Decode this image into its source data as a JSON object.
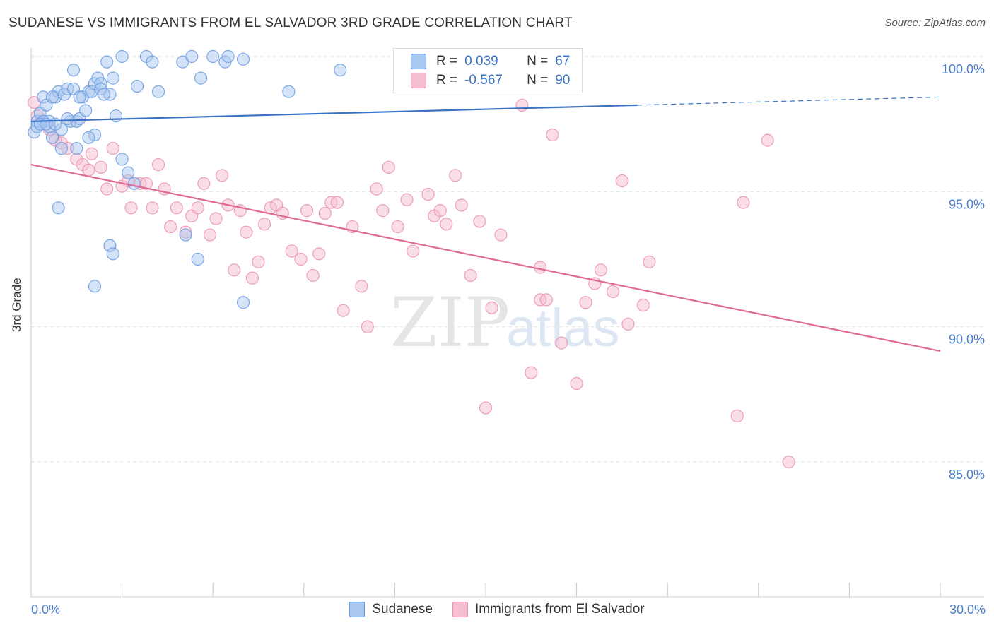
{
  "header": {
    "title": "SUDANESE VS IMMIGRANTS FROM EL SALVADOR 3RD GRADE CORRELATION CHART",
    "source": "Source: ZipAtlas.com"
  },
  "legend_top": {
    "rows": [
      {
        "r_label": "R =",
        "r_value": "0.039",
        "n_label": "N =",
        "n_value": "67"
      },
      {
        "r_label": "R =",
        "r_value": "-0.567",
        "n_label": "N =",
        "n_value": "90"
      }
    ]
  },
  "watermark": {
    "zip": "ZIP",
    "atlas": "atlas"
  },
  "chart_data": {
    "type": "scatter",
    "ylabel": "3rd Grade",
    "xlim": [
      0,
      30
    ],
    "ylim": [
      80.5,
      101.5
    ],
    "x_ticks": [
      {
        "value": 0,
        "label": "0.0%"
      },
      {
        "value": 30,
        "label": "30.0%"
      }
    ],
    "y_ticks": [
      {
        "value": 100,
        "label": "100.0%"
      },
      {
        "value": 95,
        "label": "95.0%"
      },
      {
        "value": 90,
        "label": "90.0%"
      },
      {
        "value": 85,
        "label": "85.0%"
      }
    ],
    "grid": "horizontal-dashed",
    "colors": {
      "sudanese_fill": "#a9c8f0",
      "sudanese_edge": "#6a9be0",
      "sudanese_line": "#3b73c4",
      "salvador_fill": "#f5bdd0",
      "salvador_edge": "#ea8fae",
      "salvador_line": "#e06a96",
      "tick_label": "#4a7ecb"
    },
    "series": [
      {
        "name": "Sudanese",
        "trend": {
          "x0": 0,
          "y0": 97.6,
          "x1": 20.0,
          "y1": 98.2,
          "dash_to_x": 30,
          "dash_to_y": 98.5
        },
        "points": [
          [
            0.1,
            97.2
          ],
          [
            0.2,
            97.6
          ],
          [
            0.3,
            97.9
          ],
          [
            0.4,
            98.5
          ],
          [
            0.5,
            98.2
          ],
          [
            0.6,
            97.6
          ],
          [
            0.7,
            97.0
          ],
          [
            0.8,
            98.5
          ],
          [
            0.9,
            98.7
          ],
          [
            1.0,
            97.3
          ],
          [
            1.1,
            98.6
          ],
          [
            1.2,
            98.8
          ],
          [
            1.3,
            97.6
          ],
          [
            1.4,
            98.8
          ],
          [
            1.5,
            97.6
          ],
          [
            1.6,
            97.7
          ],
          [
            1.7,
            98.5
          ],
          [
            1.8,
            98.0
          ],
          [
            1.9,
            98.7
          ],
          [
            2.0,
            98.7
          ],
          [
            2.1,
            99.0
          ],
          [
            2.2,
            99.2
          ],
          [
            2.3,
            99.0
          ],
          [
            2.5,
            99.8
          ],
          [
            2.6,
            98.6
          ],
          [
            2.7,
            99.2
          ],
          [
            3.0,
            100.0
          ],
          [
            3.5,
            98.9
          ],
          [
            3.8,
            100.0
          ],
          [
            4.0,
            99.8
          ],
          [
            4.2,
            98.7
          ],
          [
            5.0,
            99.8
          ],
          [
            5.3,
            100.0
          ],
          [
            5.6,
            99.2
          ],
          [
            6.0,
            100.0
          ],
          [
            6.4,
            99.8
          ],
          [
            6.5,
            100.0
          ],
          [
            7.0,
            99.9
          ],
          [
            8.5,
            98.7
          ],
          [
            10.2,
            99.5
          ],
          [
            1.4,
            99.5
          ],
          [
            2.1,
            97.1
          ],
          [
            2.3,
            98.8
          ],
          [
            2.8,
            97.8
          ],
          [
            0.4,
            97.6
          ],
          [
            0.6,
            97.4
          ],
          [
            1.0,
            96.6
          ],
          [
            1.9,
            97.0
          ],
          [
            3.0,
            96.2
          ],
          [
            3.2,
            95.7
          ],
          [
            3.4,
            95.3
          ],
          [
            0.9,
            94.4
          ],
          [
            2.6,
            93.0
          ],
          [
            2.7,
            92.7
          ],
          [
            5.1,
            93.4
          ],
          [
            5.5,
            92.5
          ],
          [
            2.1,
            91.5
          ],
          [
            7.0,
            90.9
          ],
          [
            0.2,
            97.4
          ],
          [
            0.3,
            97.5
          ],
          [
            0.5,
            97.5
          ],
          [
            1.2,
            97.7
          ],
          [
            1.6,
            98.5
          ],
          [
            0.7,
            98.5
          ],
          [
            0.8,
            97.5
          ],
          [
            2.4,
            98.6
          ],
          [
            1.5,
            96.6
          ]
        ]
      },
      {
        "name": "Immigrants from El Salvador",
        "trend": {
          "x0": 0,
          "y0": 96.0,
          "x1": 30,
          "y1": 89.1
        },
        "points": [
          [
            0.1,
            98.3
          ],
          [
            0.2,
            97.8
          ],
          [
            0.4,
            97.6
          ],
          [
            0.6,
            97.3
          ],
          [
            0.8,
            96.9
          ],
          [
            1.0,
            96.8
          ],
          [
            1.2,
            96.6
          ],
          [
            1.5,
            96.2
          ],
          [
            1.7,
            96.0
          ],
          [
            1.9,
            95.8
          ],
          [
            2.0,
            96.4
          ],
          [
            2.3,
            95.9
          ],
          [
            2.5,
            95.1
          ],
          [
            2.7,
            96.6
          ],
          [
            3.0,
            95.2
          ],
          [
            3.2,
            95.4
          ],
          [
            3.3,
            94.4
          ],
          [
            3.6,
            95.3
          ],
          [
            3.8,
            95.3
          ],
          [
            4.0,
            94.4
          ],
          [
            4.2,
            96.0
          ],
          [
            4.4,
            95.1
          ],
          [
            4.6,
            93.7
          ],
          [
            4.8,
            94.4
          ],
          [
            5.1,
            93.5
          ],
          [
            5.3,
            94.1
          ],
          [
            5.5,
            94.4
          ],
          [
            5.7,
            95.3
          ],
          [
            5.9,
            93.4
          ],
          [
            6.1,
            94.0
          ],
          [
            6.3,
            95.6
          ],
          [
            6.5,
            94.5
          ],
          [
            6.7,
            92.1
          ],
          [
            6.9,
            94.3
          ],
          [
            7.1,
            93.5
          ],
          [
            7.3,
            91.8
          ],
          [
            7.5,
            92.4
          ],
          [
            7.7,
            93.8
          ],
          [
            7.9,
            94.4
          ],
          [
            8.1,
            94.5
          ],
          [
            8.3,
            94.2
          ],
          [
            8.6,
            92.8
          ],
          [
            8.9,
            92.5
          ],
          [
            9.1,
            94.3
          ],
          [
            9.3,
            91.9
          ],
          [
            9.5,
            92.7
          ],
          [
            9.7,
            94.2
          ],
          [
            9.9,
            94.6
          ],
          [
            10.1,
            94.6
          ],
          [
            10.3,
            90.6
          ],
          [
            10.6,
            93.7
          ],
          [
            10.9,
            91.5
          ],
          [
            11.1,
            90.0
          ],
          [
            11.4,
            95.1
          ],
          [
            11.6,
            94.3
          ],
          [
            11.8,
            95.9
          ],
          [
            12.1,
            93.7
          ],
          [
            12.4,
            94.7
          ],
          [
            12.6,
            92.8
          ],
          [
            13.1,
            94.9
          ],
          [
            13.3,
            94.1
          ],
          [
            13.5,
            94.3
          ],
          [
            13.7,
            93.8
          ],
          [
            14.0,
            95.6
          ],
          [
            14.2,
            94.5
          ],
          [
            14.5,
            91.9
          ],
          [
            14.8,
            93.9
          ],
          [
            15.0,
            87.0
          ],
          [
            15.2,
            90.7
          ],
          [
            15.5,
            93.4
          ],
          [
            16.2,
            98.2
          ],
          [
            16.5,
            88.3
          ],
          [
            16.8,
            91.0
          ],
          [
            17.0,
            91.0
          ],
          [
            17.2,
            97.1
          ],
          [
            17.5,
            89.4
          ],
          [
            18.0,
            87.9
          ],
          [
            18.3,
            90.9
          ],
          [
            18.6,
            91.6
          ],
          [
            18.8,
            92.1
          ],
          [
            19.2,
            91.3
          ],
          [
            19.5,
            95.4
          ],
          [
            19.7,
            90.1
          ],
          [
            20.2,
            90.8
          ],
          [
            20.4,
            92.4
          ],
          [
            16.8,
            92.2
          ],
          [
            23.5,
            94.6
          ],
          [
            24.3,
            96.9
          ],
          [
            23.3,
            86.7
          ],
          [
            25.0,
            85.0
          ]
        ]
      }
    ]
  }
}
